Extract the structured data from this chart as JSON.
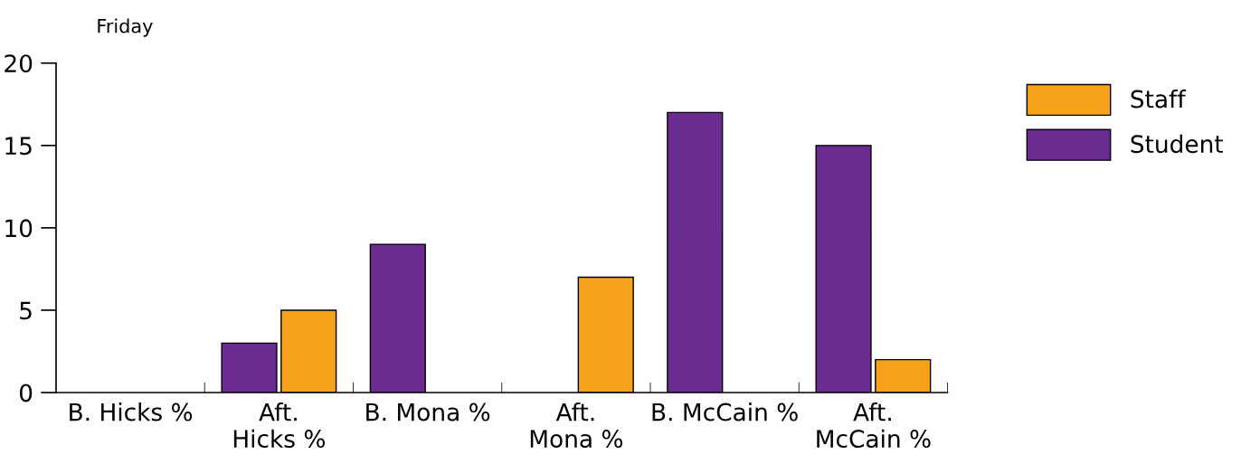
{
  "chart_data": {
    "type": "bar",
    "title": "Friday",
    "categories": [
      "B. Hicks %",
      "Aft.\nHicks %",
      "B. Mona %",
      "Aft.\nMona %",
      "B. McCain %",
      "Aft.\nMcCain %"
    ],
    "series": [
      {
        "name": "Student",
        "color": "#6b2c91",
        "values": [
          null,
          3,
          9,
          null,
          17,
          15
        ]
      },
      {
        "name": "Staff",
        "color": "#f7a21b",
        "values": [
          null,
          5,
          null,
          7,
          null,
          2
        ]
      }
    ],
    "ylim": [
      0,
      20
    ],
    "yticks": [
      0,
      5,
      10,
      15,
      20
    ],
    "grid": false,
    "legend": "top right"
  }
}
